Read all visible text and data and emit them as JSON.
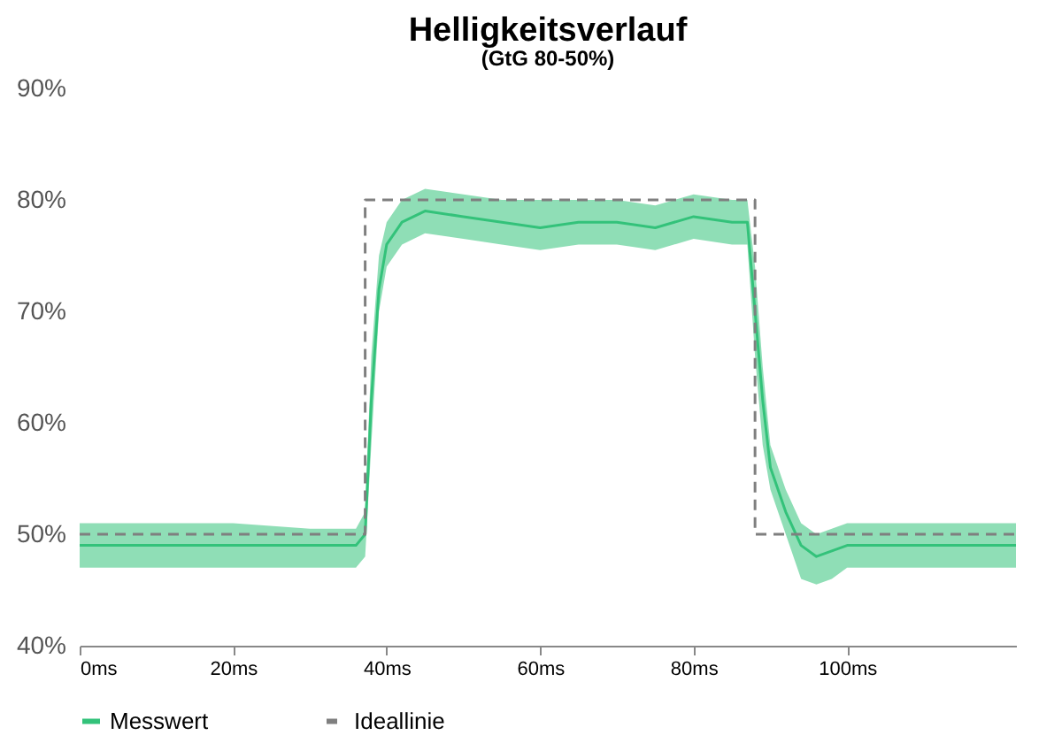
{
  "chart_data": {
    "type": "line",
    "title": "Helligkeitsverlauf",
    "subtitle": "(GtG 80-50%)",
    "xlim": [
      0,
      122
    ],
    "xticks": [
      {
        "value": 0,
        "label": "0ms"
      },
      {
        "value": 20,
        "label": "20ms"
      },
      {
        "value": 40,
        "label": "40ms"
      },
      {
        "value": 60,
        "label": "60ms"
      },
      {
        "value": 80,
        "label": "80ms"
      },
      {
        "value": 100,
        "label": "100ms"
      }
    ],
    "ylim": [
      40,
      90
    ],
    "yticks": [
      {
        "value": 40,
        "label": "40%"
      },
      {
        "value": 50,
        "label": "50%"
      },
      {
        "value": 60,
        "label": "60%"
      },
      {
        "value": 70,
        "label": "70%"
      },
      {
        "value": 80,
        "label": "80%"
      },
      {
        "value": 90,
        "label": "90%"
      }
    ],
    "legend": "bottom",
    "grid": false,
    "series": [
      {
        "name": "Messwert",
        "line_style": "solid",
        "color": "#33c27a",
        "x": [
          0,
          10,
          20,
          30,
          36,
          37.2,
          38,
          39,
          40,
          42,
          45,
          50,
          55,
          60,
          65,
          70,
          75,
          80,
          85,
          87,
          88,
          89,
          90,
          92,
          94,
          96,
          98,
          100,
          110,
          122
        ],
        "values": [
          49,
          49,
          49,
          49,
          49,
          50,
          62,
          72,
          76,
          78,
          79,
          78.5,
          78,
          77.5,
          78,
          78,
          77.5,
          78.5,
          78,
          78,
          70,
          62,
          56,
          52,
          49,
          48,
          48.5,
          49,
          49,
          49
        ],
        "lower": [
          47,
          47,
          47,
          47,
          47,
          48,
          58,
          70,
          74,
          76,
          77,
          76.5,
          76,
          75.5,
          76,
          76,
          75.5,
          76.5,
          76,
          76,
          66,
          58,
          54,
          50,
          46,
          45.5,
          46,
          47,
          47,
          47
        ],
        "upper": [
          51,
          51,
          51,
          50.5,
          50.5,
          52,
          66,
          75,
          78,
          80,
          81,
          80.5,
          80,
          80,
          80,
          80,
          79.5,
          80.5,
          80,
          80,
          74,
          65,
          58,
          54,
          51,
          50,
          50.5,
          51,
          51,
          51
        ]
      },
      {
        "name": "Ideallinie",
        "line_style": "dashed",
        "color": "#7f7f7f",
        "x": [
          0,
          37.2,
          37.2,
          88,
          88,
          122
        ],
        "values": [
          50,
          50,
          80,
          80,
          50,
          50
        ]
      }
    ]
  }
}
